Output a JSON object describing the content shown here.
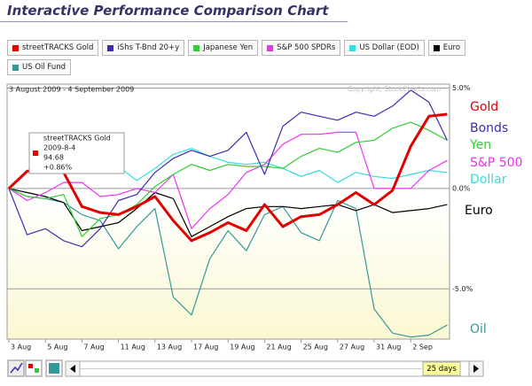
{
  "chart_data": {
    "type": "line",
    "title": "Interactive Performance Comparison Chart",
    "subtitle": "3 August 2009 - 4 September 2009",
    "copyright": "Copyright, StockCharts.com",
    "categories": [
      "3 Aug",
      null,
      "5 Aug",
      null,
      "7 Aug",
      null,
      "11 Aug",
      null,
      "13 Aug",
      null,
      "17 Aug",
      null,
      "19 Aug",
      null,
      "21 Aug",
      null,
      "25 Aug",
      null,
      "27 Aug",
      null,
      "31 Aug",
      null,
      "2 Sep",
      null,
      null
    ],
    "ylim": [
      -7.5,
      5.2
    ],
    "yticks": [
      {
        "value": 5,
        "label": "5.0%"
      },
      {
        "value": 0,
        "label": "0.0%"
      },
      {
        "value": -5,
        "label": "-5.0%"
      }
    ],
    "grid": true,
    "series": [
      {
        "name": "streetTRACKS Gold",
        "label": "Gold",
        "color": "#e00000",
        "values": [
          0,
          0.86,
          1.0,
          0.8,
          -0.9,
          -1.2,
          -1.3,
          -0.9,
          -0.4,
          -1.6,
          -2.6,
          -2.2,
          -1.7,
          -2.1,
          -0.8,
          -1.9,
          -1.4,
          -1.3,
          -0.8,
          -0.2,
          -0.8,
          -0.1,
          2.1,
          3.6,
          3.7
        ]
      },
      {
        "name": "iShs T-Bnd 20+y",
        "label": "Bonds",
        "color": "#3a2db4",
        "values": [
          0,
          -2.3,
          -2.0,
          -2.6,
          -2.9,
          -2.0,
          -0.6,
          -0.3,
          0.8,
          1.5,
          1.9,
          1.6,
          1.9,
          2.8,
          0.7,
          3.1,
          3.8,
          3.6,
          3.4,
          3.8,
          3.6,
          4.1,
          4.9,
          4.3,
          2.4
        ]
      },
      {
        "name": "Japanese Yen",
        "label": "Yen",
        "color": "#33cc33",
        "values": [
          0,
          -0.4,
          -0.5,
          -0.3,
          -2.4,
          -1.5,
          -1.3,
          -0.8,
          0.1,
          0.7,
          1.2,
          0.9,
          1.2,
          1.1,
          1.1,
          1.0,
          1.6,
          2.0,
          1.8,
          2.3,
          2.4,
          3.0,
          3.3,
          2.9,
          2.4
        ]
      },
      {
        "name": "S&P 500 SPDRs",
        "label": "S&P 500",
        "color": "#ee33ee",
        "values": [
          0,
          -0.6,
          -0.2,
          0.3,
          0.3,
          -0.4,
          -0.3,
          0,
          -0.2,
          0.7,
          -2.0,
          -1.0,
          -0.3,
          0.8,
          1.2,
          2.2,
          2.7,
          2.7,
          2.8,
          2.8,
          0,
          0,
          0,
          0.9,
          1.4
        ]
      },
      {
        "name": "US Dollar (EOD)",
        "label": "Dollar",
        "color": "#33dddd",
        "values": [
          0,
          0.8,
          1.2,
          1.6,
          1.2,
          1.3,
          1.1,
          0.4,
          1.0,
          1.7,
          2.0,
          1.6,
          1.3,
          1.2,
          1.3,
          1.0,
          0.6,
          0.9,
          0.3,
          0.8,
          0.6,
          0.5,
          0.7,
          0.9,
          0.8
        ]
      },
      {
        "name": "Euro",
        "label": "Euro",
        "color": "#000000",
        "values": [
          0,
          -0.2,
          -0.4,
          -0.7,
          -2.1,
          -1.9,
          -1.7,
          -1.0,
          -0.2,
          -0.5,
          -2.4,
          -1.9,
          -1.4,
          -1.0,
          -0.9,
          -0.9,
          -1.0,
          -0.9,
          -0.8,
          -1.1,
          -0.8,
          -1.2,
          -1.1,
          -1.0,
          -0.8
        ]
      },
      {
        "name": "US Oil Fund",
        "label": "Oil",
        "color": "#339999",
        "values": [
          0,
          -0.4,
          -0.5,
          -0.7,
          -1.3,
          -1.6,
          -3.0,
          -1.9,
          -1.0,
          -5.4,
          -6.3,
          -3.5,
          -2.1,
          -3.1,
          -1.3,
          -0.9,
          -2.2,
          -2.6,
          -0.6,
          -1.0,
          -6.0,
          -7.2,
          -7.4,
          -7.3,
          -6.8
        ]
      }
    ],
    "tooltip": {
      "title": "streetTRACKS Gold",
      "date": "2009-8-4",
      "price": "94.68",
      "change": "+0.86%"
    }
  },
  "controls": {
    "period": "25 days"
  }
}
